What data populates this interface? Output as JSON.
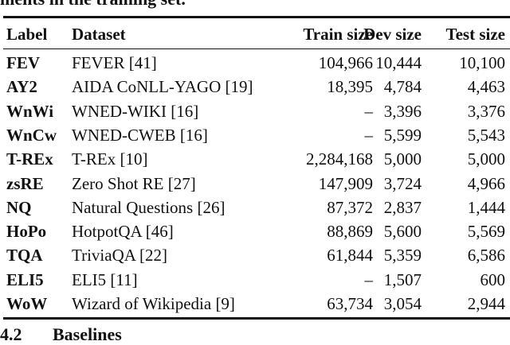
{
  "caption_fragment": "ments in the training set.",
  "table": {
    "headers": [
      "Label",
      "Dataset",
      "Train size",
      "Dev size",
      "Test size"
    ],
    "rows": [
      [
        "FEV",
        "FEVER [41]",
        "104,966",
        "10,444",
        "10,100"
      ],
      [
        "AY2",
        "AIDA CoNLL-YAGO [19]",
        "18,395",
        "4,784",
        "4,463"
      ],
      [
        "WnWi",
        "WNED-WIKI [16]",
        "–",
        "3,396",
        "3,376"
      ],
      [
        "WnCw",
        "WNED-CWEB [16]",
        "–",
        "5,599",
        "5,543"
      ],
      [
        "T-REx",
        "T-REx [10]",
        "2,284,168",
        "5,000",
        "5,000"
      ],
      [
        "zsRE",
        "Zero Shot RE [27]",
        "147,909",
        "3,724",
        "4,966"
      ],
      [
        "NQ",
        "Natural Questions [26]",
        "87,372",
        "2,837",
        "1,444"
      ],
      [
        "HoPo",
        "HotpotQA [46]",
        "88,869",
        "5,600",
        "5,569"
      ],
      [
        "TQA",
        "TriviaQA [22]",
        "61,844",
        "5,359",
        "6,586"
      ],
      [
        "ELI5",
        "ELI5 [11]",
        "–",
        "1,507",
        "600"
      ],
      [
        "WoW",
        "Wizard of Wikipedia [9]",
        "63,734",
        "3,054",
        "2,944"
      ]
    ]
  },
  "section": {
    "number": "4.2",
    "title": "Baselines"
  }
}
